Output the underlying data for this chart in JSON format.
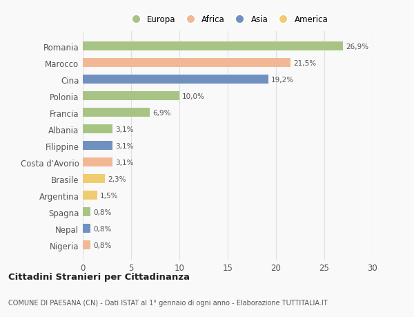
{
  "categories": [
    "Romania",
    "Marocco",
    "Cina",
    "Polonia",
    "Francia",
    "Albania",
    "Filippine",
    "Costa d'Avorio",
    "Brasile",
    "Argentina",
    "Spagna",
    "Nepal",
    "Nigeria"
  ],
  "values": [
    26.9,
    21.5,
    19.2,
    10.0,
    6.9,
    3.1,
    3.1,
    3.1,
    2.3,
    1.5,
    0.8,
    0.8,
    0.8
  ],
  "labels": [
    "26,9%",
    "21,5%",
    "19,2%",
    "10,0%",
    "6,9%",
    "3,1%",
    "3,1%",
    "3,1%",
    "2,3%",
    "1,5%",
    "0,8%",
    "0,8%",
    "0,8%"
  ],
  "continents": [
    "Europa",
    "Africa",
    "Asia",
    "Europa",
    "Europa",
    "Europa",
    "Asia",
    "Africa",
    "America",
    "America",
    "Europa",
    "Asia",
    "Africa"
  ],
  "colors": {
    "Europa": "#a8c484",
    "Africa": "#f2b896",
    "Asia": "#7090c0",
    "America": "#f0cc70"
  },
  "legend_order": [
    "Europa",
    "Africa",
    "Asia",
    "America"
  ],
  "title": "Cittadini Stranieri per Cittadinanza",
  "subtitle": "COMUNE DI PAESANA (CN) - Dati ISTAT al 1° gennaio di ogni anno - Elaborazione TUTTITALIA.IT",
  "xlim": [
    0,
    30
  ],
  "xticks": [
    0,
    5,
    10,
    15,
    20,
    25,
    30
  ],
  "background_color": "#f9f9f9",
  "bar_height": 0.55,
  "grid_color": "#e0e0e0"
}
